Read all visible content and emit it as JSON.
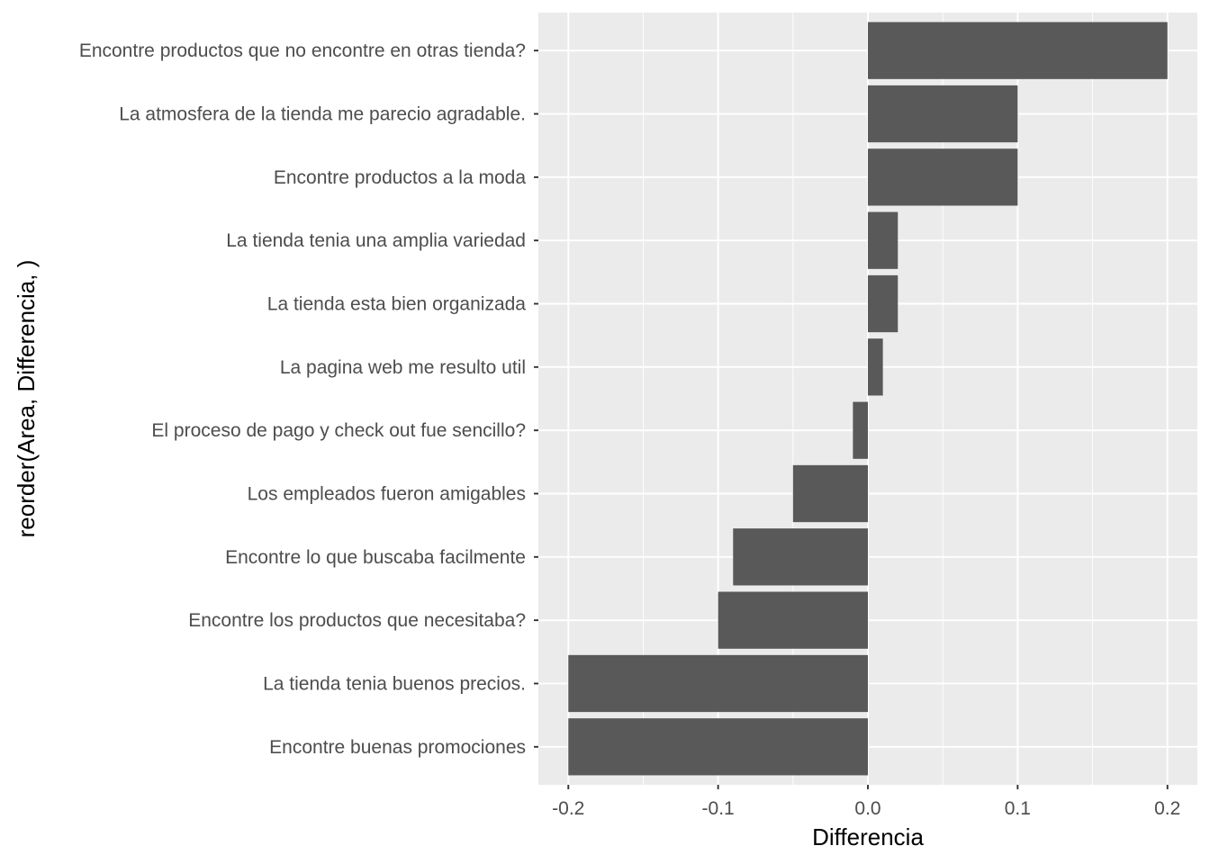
{
  "chart_data": {
    "type": "bar",
    "orientation": "horizontal",
    "title": "",
    "xlabel": "Differencia",
    "ylabel": "reorder(Area, Differencia, )",
    "xlim": [
      -0.22,
      0.22
    ],
    "xticks": [
      -0.2,
      -0.1,
      0.0,
      0.1,
      0.2
    ],
    "xtick_labels": [
      "-0.2",
      "-0.1",
      "0.0",
      "0.1",
      "0.2"
    ],
    "grid": true,
    "bar_color": "#595959",
    "panel_color": "#EBEBEB",
    "categories": [
      "Encontre productos que no encontre en otras tienda?",
      "La atmosfera de la tienda me parecio agradable.",
      "Encontre productos a la moda",
      "La tienda tenia una amplia variedad",
      "La tienda esta bien organizada",
      "La pagina web me resulto util",
      "El proceso de pago y check out fue sencillo?",
      "Los empleados fueron amigables",
      "Encontre lo que buscaba facilmente",
      "Encontre los productos que necesitaba?",
      "La tienda tenia buenos precios.",
      "Encontre buenas promociones"
    ],
    "values": [
      0.2,
      0.1,
      0.1,
      0.02,
      0.02,
      0.01,
      -0.01,
      -0.05,
      -0.09,
      -0.1,
      -0.2,
      -0.2
    ]
  }
}
